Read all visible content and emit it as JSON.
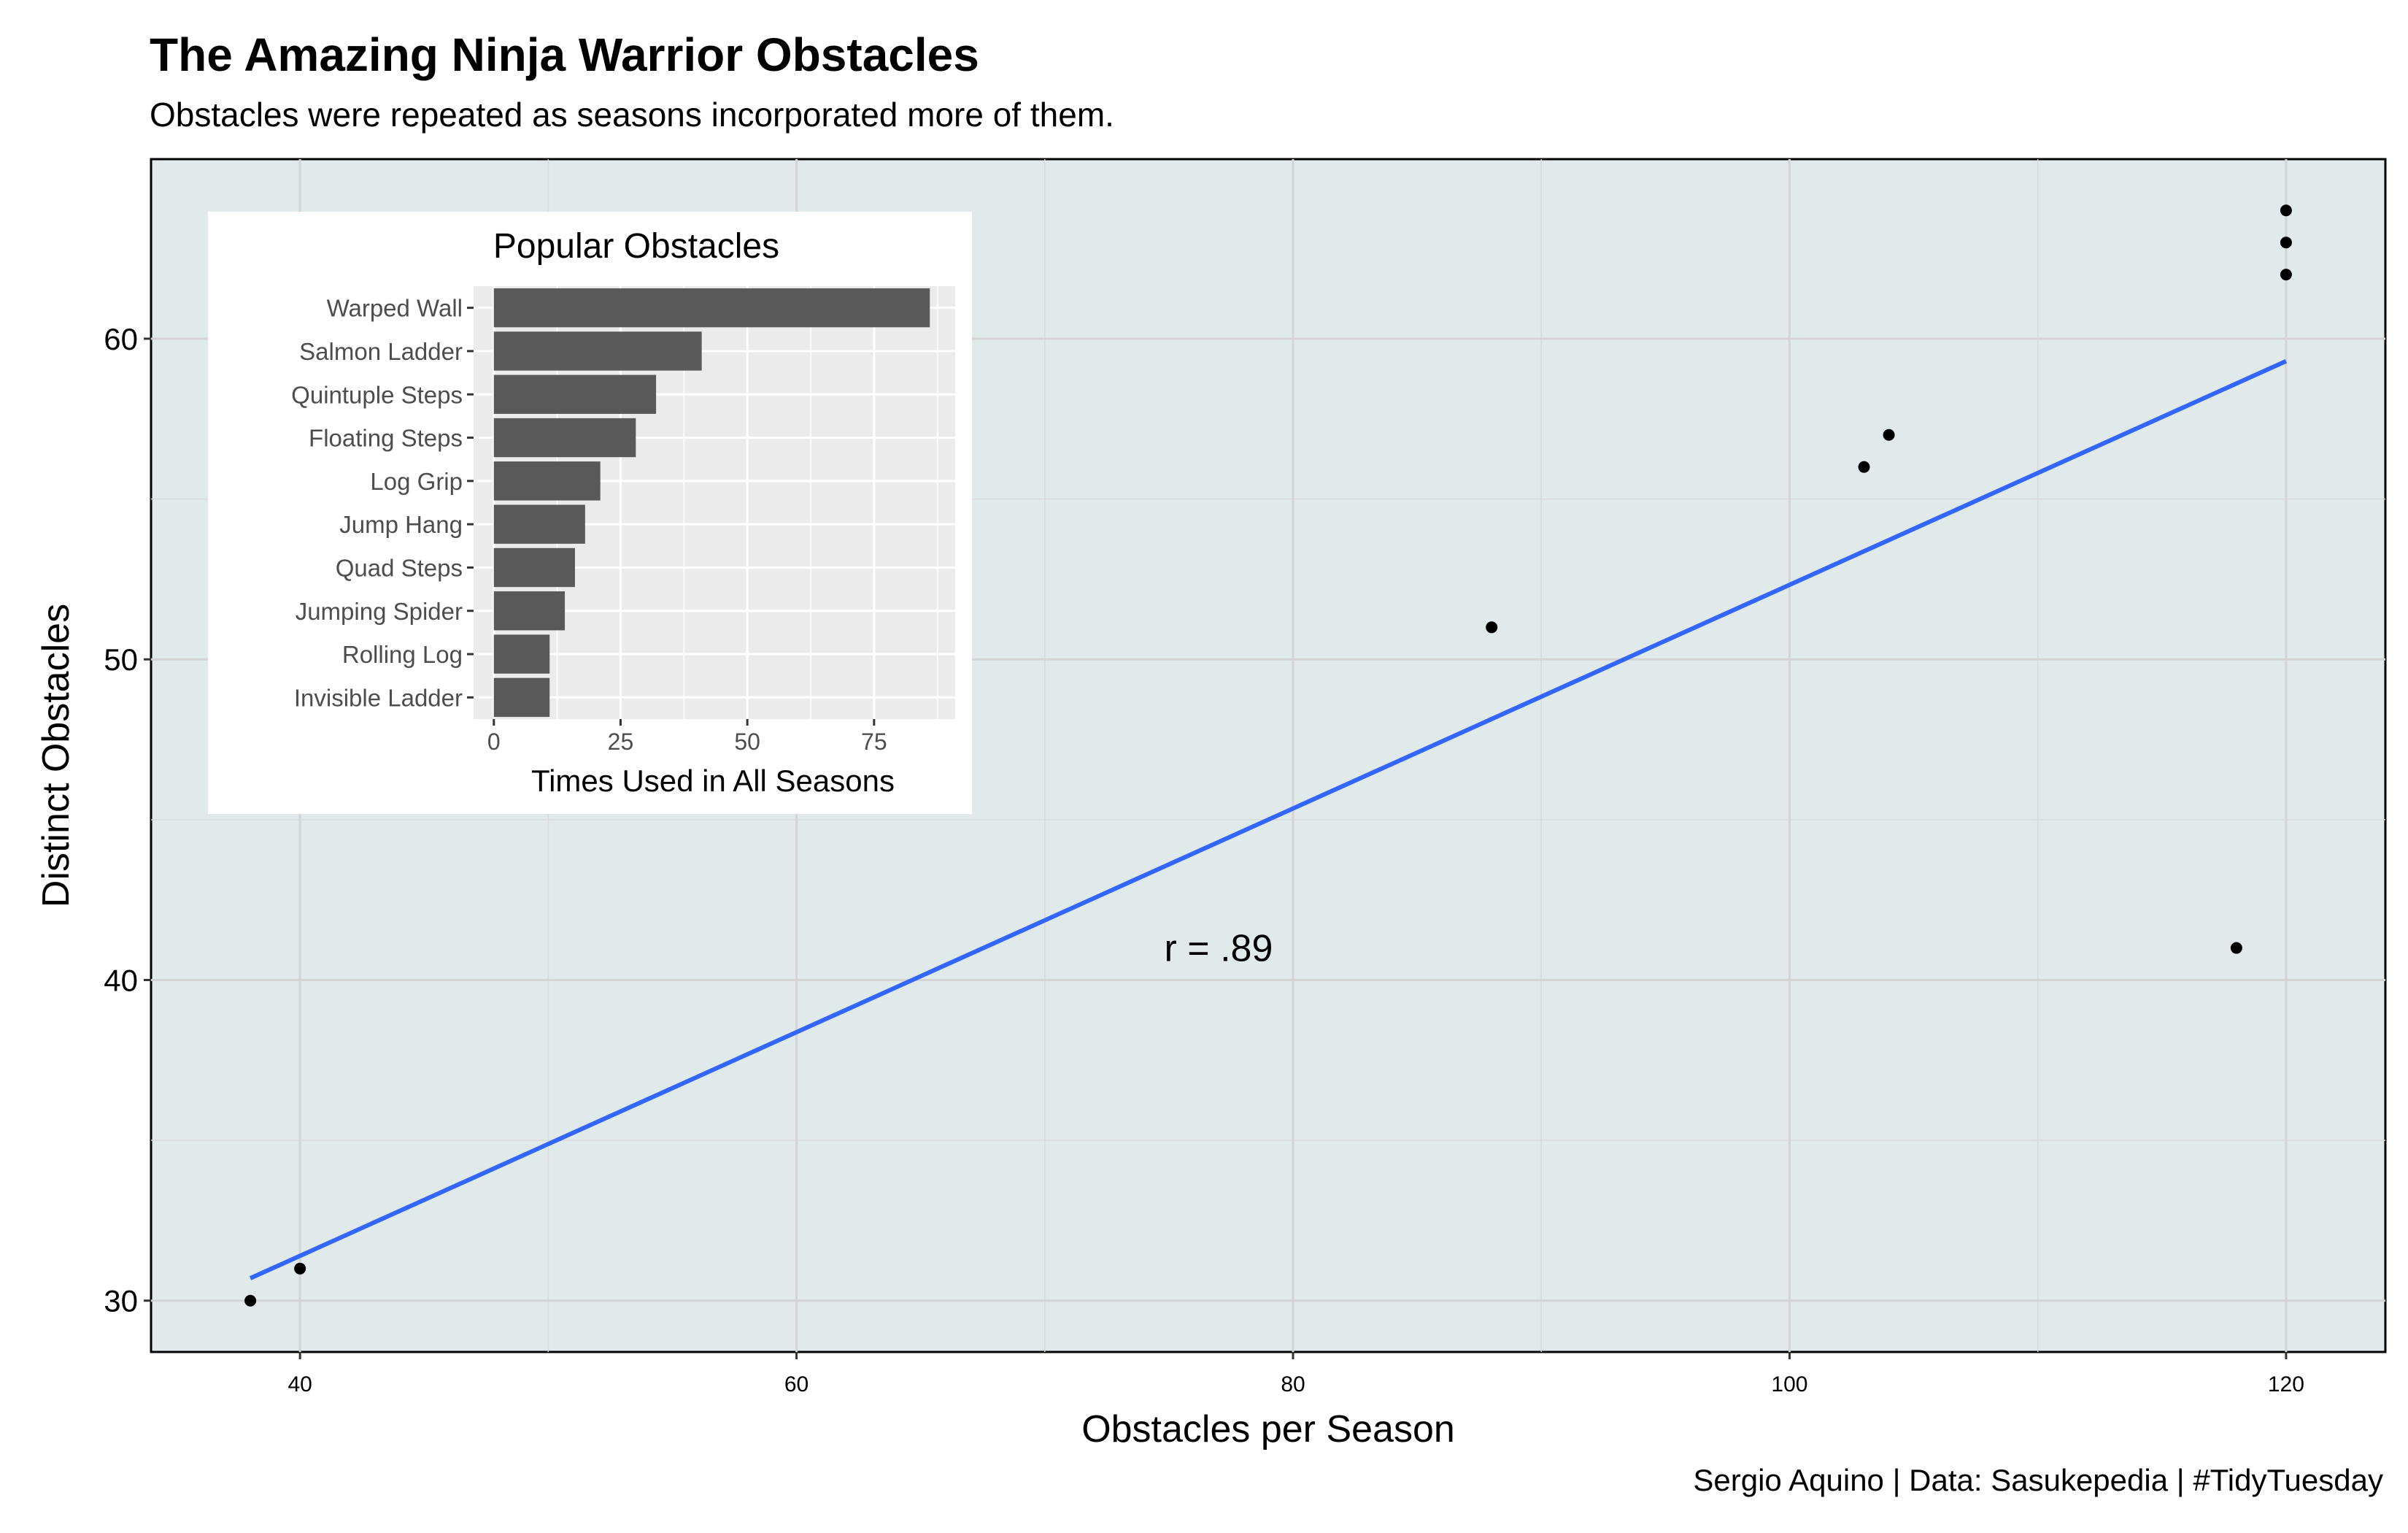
{
  "chart_data": [
    {
      "type": "scatter",
      "title": "The Amazing Ninja Warrior Obstacles",
      "subtitle": "Obstacles were repeated as seasons incorporated more of them.",
      "caption": "Sergio Aquino | Data: Sasukepedia | #TidyTuesday",
      "xlabel": "Obstacles per Season",
      "ylabel": "Distinct Obstacles",
      "xlim": [
        34,
        124
      ],
      "ylim": [
        28.4,
        65.6
      ],
      "x_ticks": [
        40,
        60,
        80,
        100,
        120
      ],
      "y_ticks": [
        30,
        40,
        50,
        60
      ],
      "grid": true,
      "points": [
        {
          "x": 38,
          "y": 30
        },
        {
          "x": 40,
          "y": 31
        },
        {
          "x": 88,
          "y": 51
        },
        {
          "x": 103,
          "y": 56
        },
        {
          "x": 104,
          "y": 57
        },
        {
          "x": 118,
          "y": 41
        },
        {
          "x": 120,
          "y": 62
        },
        {
          "x": 120,
          "y": 63
        },
        {
          "x": 120,
          "y": 64
        }
      ],
      "trend_line": {
        "x": [
          38,
          120
        ],
        "y": [
          30.7,
          59.3
        ],
        "color": "#3366ff"
      },
      "annotation": {
        "text": "r = .89",
        "x": 77,
        "y": 41
      },
      "panel_color": "#e0eaeb",
      "point_color": "#000000"
    },
    {
      "type": "bar",
      "orientation": "horizontal",
      "title": "Popular Obstacles",
      "xlabel": "Times Used in All Seasons",
      "xlim": [
        -4,
        91
      ],
      "x_ticks": [
        0,
        25,
        50,
        75
      ],
      "categories": [
        "Warped Wall",
        "Salmon Ladder",
        "Quintuple Steps",
        "Floating Steps",
        "Log Grip",
        "Jump Hang",
        "Quad Steps",
        "Jumping Spider",
        "Rolling Log",
        "Invisible Ladder"
      ],
      "values": [
        86,
        41,
        32,
        28,
        21,
        18,
        16,
        14,
        11,
        11
      ],
      "bar_color": "#595959",
      "panel_color": "#ebebeb"
    }
  ]
}
